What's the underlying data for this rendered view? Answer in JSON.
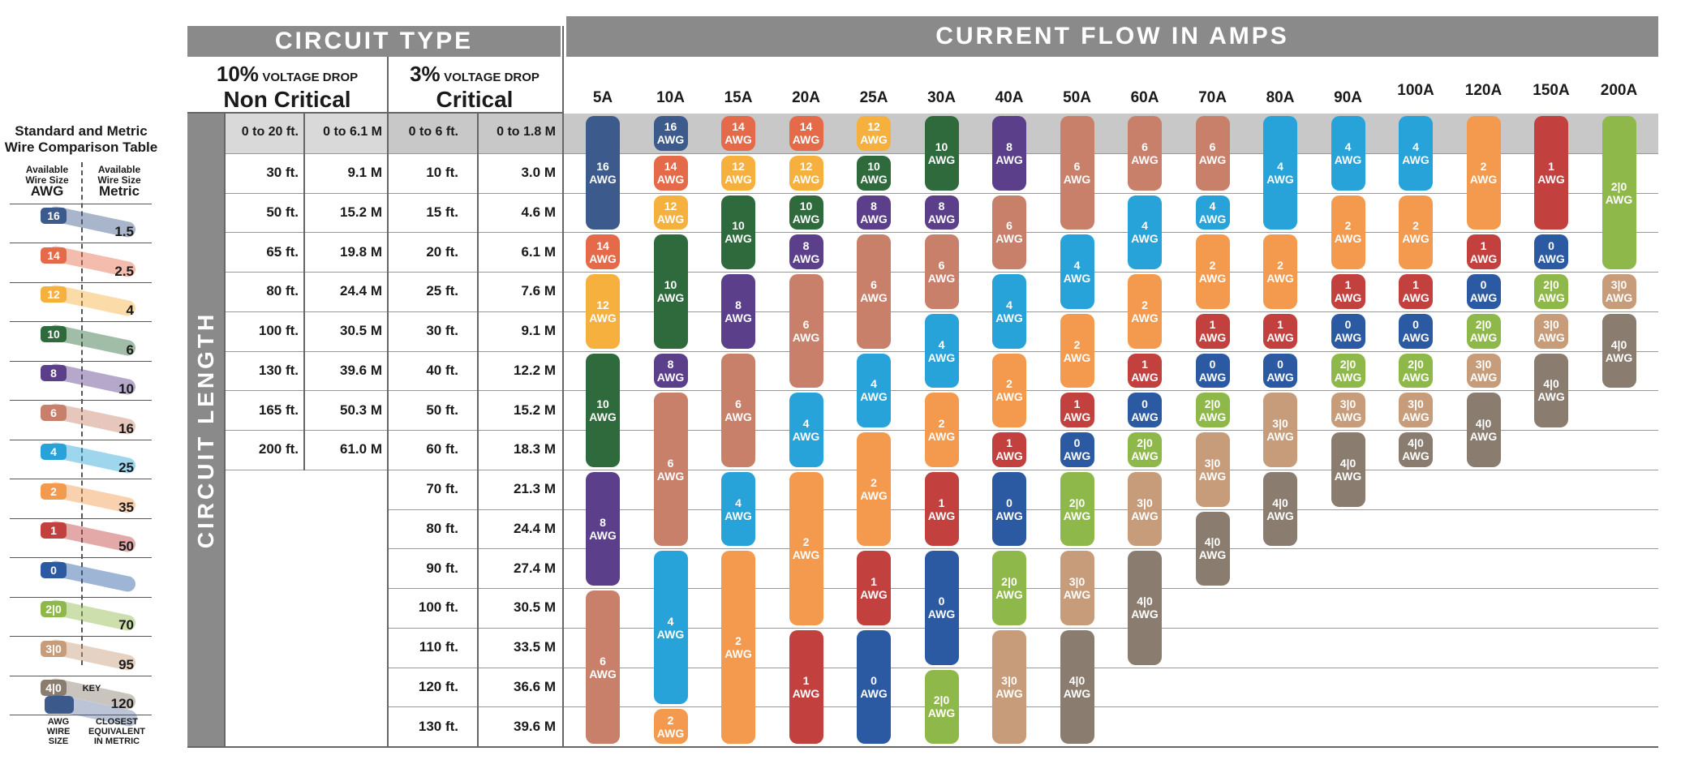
{
  "legend": {
    "title_line1": "Standard and Metric",
    "title_line2": "Wire Comparison Table",
    "col_awg_small1": "Available",
    "col_awg_small2": "Wire Size",
    "col_awg_big": "AWG",
    "col_metric_small1": "Available",
    "col_metric_small2": "Wire Size",
    "col_metric_big": "Metric",
    "items": [
      {
        "awg": "16",
        "metric": "1.5",
        "color": "#3d5a8c"
      },
      {
        "awg": "14",
        "metric": "2.5",
        "color": "#e56a4a"
      },
      {
        "awg": "12",
        "metric": "4",
        "color": "#f6b03e"
      },
      {
        "awg": "10",
        "metric": "6",
        "color": "#2e6a3c"
      },
      {
        "awg": "8",
        "metric": "10",
        "color": "#5b3f8a"
      },
      {
        "awg": "6",
        "metric": "16",
        "color": "#c9806a"
      },
      {
        "awg": "4",
        "metric": "25",
        "color": "#27a3d9"
      },
      {
        "awg": "2",
        "metric": "35",
        "color": "#f39a4e"
      },
      {
        "awg": "1",
        "metric": "50",
        "color": "#c2413f"
      },
      {
        "awg": "0",
        "metric": "",
        "color": "#2b5aa3"
      },
      {
        "awg": "2|0",
        "metric": "70",
        "color": "#8fb84a"
      },
      {
        "awg": "3|0",
        "metric": "95",
        "color": "#c79c7a"
      },
      {
        "awg": "4|0",
        "metric": "120",
        "color": "#8a7d6f"
      }
    ],
    "key_title": "KEY",
    "key_left_1": "AWG",
    "key_left_2": "WIRE",
    "key_left_3": "SIZE",
    "key_right_1": "CLOSEST",
    "key_right_2": "EQUIVALENT",
    "key_right_3": "IN METRIC"
  },
  "header": {
    "circuit_type": "CIRCUIT TYPE",
    "current_flow": "CURRENT FLOW IN AMPS",
    "nc_pct": "10%",
    "nc_small": "VOLTAGE DROP",
    "nc_big": "Non Critical",
    "c_pct": "3%",
    "c_small": "VOLTAGE DROP",
    "c_big": "Critical",
    "circuit_length": "CIRCUIT LENGTH"
  },
  "chart_data": {
    "type": "table",
    "title": "CURRENT FLOW IN AMPS",
    "columns": [
      "5A",
      "10A",
      "15A",
      "20A",
      "25A",
      "30A",
      "40A",
      "50A",
      "60A",
      "70A",
      "80A",
      "90A",
      "100A",
      "120A",
      "150A",
      "200A"
    ],
    "rows_non_critical": [
      [
        "0 to 20 ft.",
        "0 to 6.1 M"
      ],
      [
        "30 ft.",
        "9.1 M"
      ],
      [
        "50 ft.",
        "15.2 M"
      ],
      [
        "65 ft.",
        "19.8 M"
      ],
      [
        "80 ft.",
        "24.4 M"
      ],
      [
        "100 ft.",
        "30.5 M"
      ],
      [
        "130 ft.",
        "39.6 M"
      ],
      [
        "165 ft.",
        "50.3 M"
      ],
      [
        "200 ft.",
        "61.0 M"
      ]
    ],
    "rows_critical": [
      [
        "0 to 6 ft.",
        "0 to 1.8 M"
      ],
      [
        "10 ft.",
        "3.0 M"
      ],
      [
        "15 ft.",
        "4.6 M"
      ],
      [
        "20 ft.",
        "6.1 M"
      ],
      [
        "25 ft.",
        "7.6 M"
      ],
      [
        "30 ft.",
        "9.1 M"
      ],
      [
        "40 ft.",
        "12.2 M"
      ],
      [
        "50 ft.",
        "15.2 M"
      ],
      [
        "60 ft.",
        "18.3 M"
      ],
      [
        "70 ft.",
        "21.3 M"
      ],
      [
        "80 ft.",
        "24.4 M"
      ],
      [
        "90 ft.",
        "27.4 M"
      ],
      [
        "100 ft.",
        "30.5 M"
      ],
      [
        "110 ft.",
        "33.5 M"
      ],
      [
        "120 ft.",
        "36.6 M"
      ],
      [
        "130 ft.",
        "39.6 M"
      ]
    ],
    "awg_unit": "AWG",
    "wire_runs": [
      [
        {
          "awg": "16",
          "start": 0,
          "end": 3
        },
        {
          "awg": "14",
          "start": 3,
          "end": 4
        },
        {
          "awg": "12",
          "start": 4,
          "end": 6
        },
        {
          "awg": "10",
          "start": 6,
          "end": 9
        },
        {
          "awg": "8",
          "start": 9,
          "end": 12
        },
        {
          "awg": "6",
          "start": 12,
          "end": 16
        }
      ],
      [
        {
          "awg": "16",
          "start": 0,
          "end": 1
        },
        {
          "awg": "14",
          "start": 1,
          "end": 2
        },
        {
          "awg": "12",
          "start": 2,
          "end": 3
        },
        {
          "awg": "10",
          "start": 3,
          "end": 6
        },
        {
          "awg": "8",
          "start": 6,
          "end": 7
        },
        {
          "awg": "6",
          "start": 7,
          "end": 11
        },
        {
          "awg": "4",
          "start": 11,
          "end": 15
        },
        {
          "awg": "2",
          "start": 15,
          "end": 16
        }
      ],
      [
        {
          "awg": "14",
          "start": 0,
          "end": 1
        },
        {
          "awg": "12",
          "start": 1,
          "end": 2
        },
        {
          "awg": "10",
          "start": 2,
          "end": 4
        },
        {
          "awg": "8",
          "start": 4,
          "end": 6
        },
        {
          "awg": "6",
          "start": 6,
          "end": 9
        },
        {
          "awg": "4",
          "start": 9,
          "end": 11
        },
        {
          "awg": "2",
          "start": 11,
          "end": 16
        }
      ],
      [
        {
          "awg": "14",
          "start": 0,
          "end": 1
        },
        {
          "awg": "12",
          "start": 1,
          "end": 2
        },
        {
          "awg": "10",
          "start": 2,
          "end": 3
        },
        {
          "awg": "8",
          "start": 3,
          "end": 4
        },
        {
          "awg": "6",
          "start": 4,
          "end": 7
        },
        {
          "awg": "4",
          "start": 7,
          "end": 9
        },
        {
          "awg": "2",
          "start": 9,
          "end": 13
        },
        {
          "awg": "1",
          "start": 13,
          "end": 16
        }
      ],
      [
        {
          "awg": "12",
          "start": 0,
          "end": 1
        },
        {
          "awg": "10",
          "start": 1,
          "end": 2
        },
        {
          "awg": "8",
          "start": 2,
          "end": 3
        },
        {
          "awg": "6",
          "start": 3,
          "end": 6
        },
        {
          "awg": "4",
          "start": 6,
          "end": 8
        },
        {
          "awg": "2",
          "start": 8,
          "end": 11
        },
        {
          "awg": "1",
          "start": 11,
          "end": 13
        },
        {
          "awg": "0",
          "start": 13,
          "end": 16
        }
      ],
      [
        {
          "awg": "10",
          "start": 0,
          "end": 2
        },
        {
          "awg": "8",
          "start": 2,
          "end": 3
        },
        {
          "awg": "6",
          "start": 3,
          "end": 5
        },
        {
          "awg": "4",
          "start": 5,
          "end": 7
        },
        {
          "awg": "2",
          "start": 7,
          "end": 9
        },
        {
          "awg": "1",
          "start": 9,
          "end": 11
        },
        {
          "awg": "0",
          "start": 11,
          "end": 14
        },
        {
          "awg": "2|0",
          "start": 14,
          "end": 16
        }
      ],
      [
        {
          "awg": "8",
          "start": 0,
          "end": 2
        },
        {
          "awg": "6",
          "start": 2,
          "end": 4
        },
        {
          "awg": "4",
          "start": 4,
          "end": 6
        },
        {
          "awg": "2",
          "start": 6,
          "end": 8
        },
        {
          "awg": "1",
          "start": 8,
          "end": 9
        },
        {
          "awg": "0",
          "start": 9,
          "end": 11
        },
        {
          "awg": "2|0",
          "start": 11,
          "end": 13
        },
        {
          "awg": "3|0",
          "start": 13,
          "end": 16
        }
      ],
      [
        {
          "awg": "6",
          "start": 0,
          "end": 3
        },
        {
          "awg": "4",
          "start": 3,
          "end": 5
        },
        {
          "awg": "2",
          "start": 5,
          "end": 7
        },
        {
          "awg": "1",
          "start": 7,
          "end": 8
        },
        {
          "awg": "0",
          "start": 8,
          "end": 9
        },
        {
          "awg": "2|0",
          "start": 9,
          "end": 11
        },
        {
          "awg": "3|0",
          "start": 11,
          "end": 13
        },
        {
          "awg": "4|0",
          "start": 13,
          "end": 16
        }
      ],
      [
        {
          "awg": "6",
          "start": 0,
          "end": 2
        },
        {
          "awg": "4",
          "start": 2,
          "end": 4
        },
        {
          "awg": "2",
          "start": 4,
          "end": 6
        },
        {
          "awg": "1",
          "start": 6,
          "end": 7
        },
        {
          "awg": "0",
          "start": 7,
          "end": 8
        },
        {
          "awg": "2|0",
          "start": 8,
          "end": 9
        },
        {
          "awg": "3|0",
          "start": 9,
          "end": 11
        },
        {
          "awg": "4|0",
          "start": 11,
          "end": 14
        }
      ],
      [
        {
          "awg": "6",
          "start": 0,
          "end": 2
        },
        {
          "awg": "4",
          "start": 2,
          "end": 3
        },
        {
          "awg": "2",
          "start": 3,
          "end": 5
        },
        {
          "awg": "1",
          "start": 5,
          "end": 6
        },
        {
          "awg": "0",
          "start": 6,
          "end": 7
        },
        {
          "awg": "2|0",
          "start": 7,
          "end": 8
        },
        {
          "awg": "3|0",
          "start": 8,
          "end": 10
        },
        {
          "awg": "4|0",
          "start": 10,
          "end": 12
        }
      ],
      [
        {
          "awg": "4",
          "start": 0,
          "end": 3
        },
        {
          "awg": "2",
          "start": 3,
          "end": 5
        },
        {
          "awg": "1",
          "start": 5,
          "end": 6
        },
        {
          "awg": "0",
          "start": 6,
          "end": 7
        },
        {
          "awg": "3|0",
          "start": 7,
          "end": 9
        },
        {
          "awg": "4|0",
          "start": 9,
          "end": 11
        }
      ],
      [
        {
          "awg": "4",
          "start": 0,
          "end": 2
        },
        {
          "awg": "2",
          "start": 2,
          "end": 4
        },
        {
          "awg": "1",
          "start": 4,
          "end": 5
        },
        {
          "awg": "0",
          "start": 5,
          "end": 6
        },
        {
          "awg": "2|0",
          "start": 6,
          "end": 7
        },
        {
          "awg": "3|0",
          "start": 7,
          "end": 8
        },
        {
          "awg": "4|0",
          "start": 8,
          "end": 10
        }
      ],
      [
        {
          "awg": "4",
          "start": 0,
          "end": 2
        },
        {
          "awg": "2",
          "start": 2,
          "end": 4
        },
        {
          "awg": "1",
          "start": 4,
          "end": 5
        },
        {
          "awg": "0",
          "start": 5,
          "end": 6
        },
        {
          "awg": "2|0",
          "start": 6,
          "end": 7
        },
        {
          "awg": "3|0",
          "start": 7,
          "end": 8
        },
        {
          "awg": "4|0",
          "start": 8,
          "end": 9
        }
      ],
      [
        {
          "awg": "2",
          "start": 0,
          "end": 3
        },
        {
          "awg": "1",
          "start": 3,
          "end": 4
        },
        {
          "awg": "0",
          "start": 4,
          "end": 5
        },
        {
          "awg": "2|0",
          "start": 5,
          "end": 6
        },
        {
          "awg": "3|0",
          "start": 6,
          "end": 7
        },
        {
          "awg": "4|0",
          "start": 7,
          "end": 9
        }
      ],
      [
        {
          "awg": "1",
          "start": 0,
          "end": 3
        },
        {
          "awg": "0",
          "start": 3,
          "end": 4
        },
        {
          "awg": "2|0",
          "start": 4,
          "end": 5
        },
        {
          "awg": "3|0",
          "start": 5,
          "end": 6
        },
        {
          "awg": "4|0",
          "start": 6,
          "end": 8
        }
      ],
      [
        {
          "awg": "2|0",
          "start": 0,
          "end": 4
        },
        {
          "awg": "3|0",
          "start": 4,
          "end": 5
        },
        {
          "awg": "4|0",
          "start": 5,
          "end": 7
        }
      ]
    ]
  }
}
